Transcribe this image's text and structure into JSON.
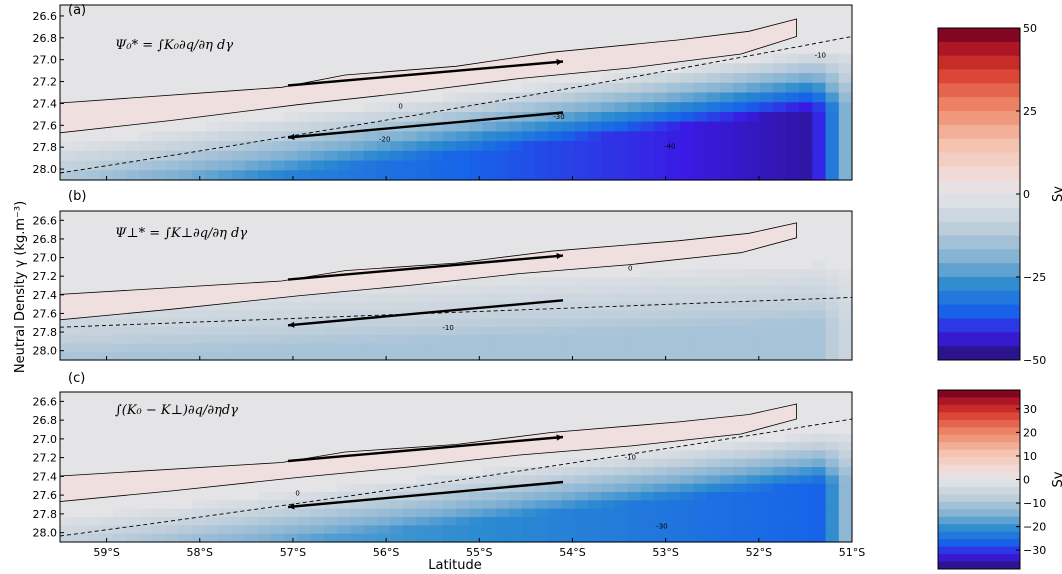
{
  "chart_data": {
    "type": "heatmap",
    "xlabel": "Latitude",
    "ylabel": "Neutral Density γ (kg.m⁻³)",
    "x_ticks": [
      "59°S",
      "58°S",
      "57°S",
      "56°S",
      "55°S",
      "54°S",
      "53°S",
      "52°S",
      "51°S"
    ],
    "x_tick_values": [
      -59,
      -58,
      -57,
      -56,
      -55,
      -54,
      -53,
      -52,
      -51
    ],
    "xlim": [
      -59.5,
      -51
    ],
    "y_ticks": [
      "26.6",
      "26.8",
      "27.0",
      "27.2",
      "27.4",
      "27.6",
      "27.8",
      "28.0"
    ],
    "y_tick_values": [
      26.6,
      26.8,
      27.0,
      27.2,
      27.4,
      27.6,
      27.8,
      28.0
    ],
    "ylim": [
      28.1,
      26.5
    ],
    "colormap": "RdBu_r",
    "panels": [
      {
        "label": "(a)",
        "equation": "Ψ₀* = ∫K₀∂q/∂η dγ",
        "contour_labels": [
          "0",
          "-10",
          "-20",
          "-30",
          "-40"
        ],
        "min_value": -45,
        "max_value": 5
      },
      {
        "label": "(b)",
        "equation": "Ψ⊥* = ∫K⊥∂q/∂η dγ",
        "contour_labels": [
          "0",
          "-10"
        ],
        "min_value": -15,
        "max_value": 5
      },
      {
        "label": "(c)",
        "equation": "∫(K₀ − K⊥)∂q/∂ηdγ",
        "contour_labels": [
          "0",
          "-10",
          "-30"
        ],
        "min_value": -35,
        "max_value": 3
      }
    ],
    "colorbars": [
      {
        "label": "Sv",
        "vmin": -50,
        "vmax": 50,
        "ticks": [
          "50",
          "25",
          "0",
          "−25",
          "−50"
        ],
        "tick_values": [
          50,
          25,
          0,
          -25,
          -50
        ]
      },
      {
        "label": "Sv",
        "vmin": -38,
        "vmax": 38,
        "ticks": [
          "30",
          "20",
          "10",
          "0",
          "−10",
          "−20",
          "−30"
        ],
        "tick_values": [
          30,
          20,
          10,
          0,
          -10,
          -20,
          -30
        ]
      }
    ]
  }
}
